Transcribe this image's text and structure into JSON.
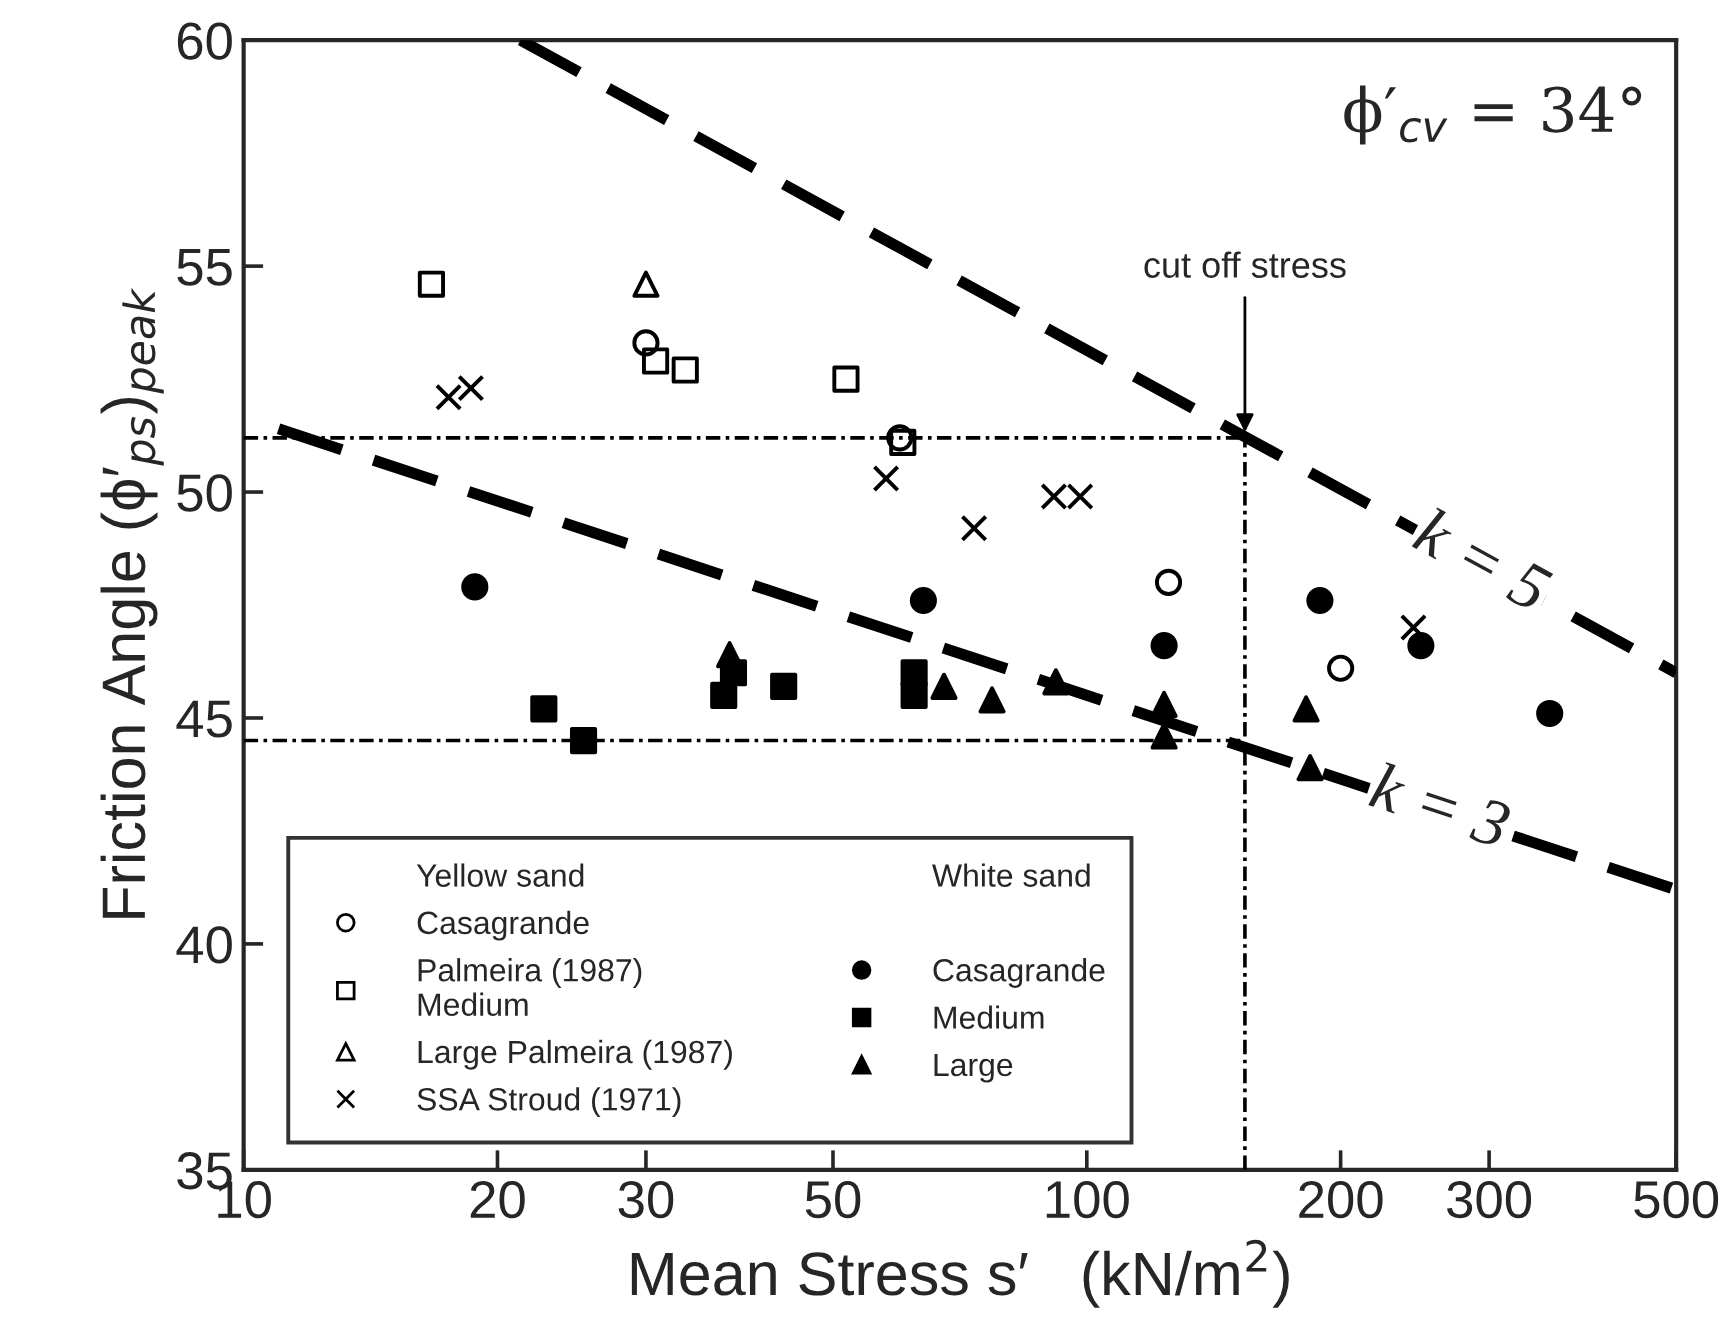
{
  "chart_data": {
    "type": "scatter",
    "xlabel": "Mean Stress s′   (kN/m$^{2}$)",
    "ylabel": "Friction Angle (ϕ′$_{ps}$)$_{peak}$",
    "log": "x",
    "xlim": [
      10,
      500
    ],
    "xticks": [
      10,
      20,
      30,
      50,
      100,
      200,
      300,
      500
    ],
    "ylim": [
      35,
      60
    ],
    "yticks": [
      35,
      40,
      45,
      50,
      55,
      60
    ],
    "grid": false,
    "legend": "bottom left",
    "series": [
      {
        "name": "Casagrande",
        "marker": "circle",
        "color": "#000000",
        "x": [
          30,
          60,
          125,
          200
        ],
        "values": [
          53.3,
          51.2,
          48.0,
          46.1
        ]
      },
      {
        "name": "Palmeira (1987)\nMedium",
        "marker": "square",
        "color": "#000000",
        "x": [
          16.7,
          30.8,
          33.4,
          51.8,
          60.5
        ],
        "values": [
          54.6,
          52.9,
          52.7,
          52.5,
          51.1
        ]
      },
      {
        "name": "Large Palmeira (1987)",
        "marker": "triangle",
        "color": "#000000",
        "x": [
          30
        ],
        "values": [
          54.6
        ]
      },
      {
        "name": "SSA Stroud (1971)",
        "marker": "cross",
        "color": "#000000",
        "x": [
          17.5,
          18.6,
          57.8,
          73.5,
          91.4,
          98.2,
          244
        ],
        "values": [
          52.1,
          52.3,
          50.3,
          49.2,
          49.9,
          49.9,
          47.0
        ]
      },
      {
        "name": "Casagrande",
        "marker": "circle",
        "color": "#000000",
        "x": [
          18.8,
          64,
          123.5,
          189,
          249,
          354
        ],
        "values": [
          47.9,
          47.6,
          46.6,
          47.6,
          46.6,
          45.1
        ]
      },
      {
        "name": "Medium",
        "marker": "square",
        "color": "#000000",
        "x": [
          22.7,
          25.3,
          37.1,
          38.1,
          43.7,
          62.4,
          62.4
        ],
        "values": [
          45.2,
          44.5,
          45.5,
          46.0,
          45.7,
          46.0,
          45.5
        ]
      },
      {
        "name": "Large",
        "marker": "triangle",
        "color": "#000000",
        "x": [
          37.7,
          67.7,
          77.2,
          91.9,
          123.5,
          123.5,
          182,
          184
        ],
        "values": [
          46.4,
          45.7,
          45.4,
          45.8,
          45.3,
          44.6,
          45.2,
          43.9
        ]
      },
      {
        "name": "k = 5",
        "type": "line",
        "line_style": "dashed",
        "color": "#000000",
        "x": [
          21.3,
          500
        ],
        "values": [
          60,
          46.0
        ]
      },
      {
        "name": "k = 3",
        "type": "line",
        "line_style": "dashed",
        "color": "#000000",
        "x": [
          11,
          500
        ],
        "values": [
          51.4,
          41.2
        ]
      },
      {
        "type": "line",
        "line_style": "dotted",
        "color": "#000000",
        "x": [
          10,
          154
        ],
        "values": [
          51.2,
          51.2
        ]
      },
      {
        "type": "line",
        "line_style": "dotted",
        "color": "#000000",
        "x": [
          10,
          154
        ],
        "values": [
          44.5,
          44.5
        ]
      },
      {
        "type": "line",
        "line_style": "dotted",
        "color": "#000000",
        "x": [
          154,
          154
        ],
        "values": [
          35,
          51.2
        ]
      }
    ],
    "annotations": [
      "Yellow sand",
      "White sand",
      {
        "text": "cut off stress",
        "x": 154,
        "y": 51.2
      },
      "ϕ′$_{cv}$ = 34°"
    ]
  }
}
